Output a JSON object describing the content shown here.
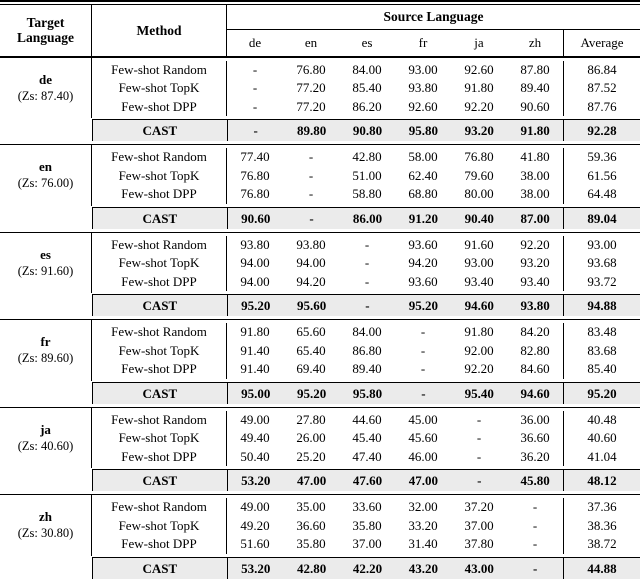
{
  "table": {
    "header": {
      "target_language_label": "Target Language",
      "method_label": "Method",
      "source_language_label": "Source Language",
      "source_columns": [
        "de",
        "en",
        "es",
        "fr",
        "ja",
        "zh"
      ],
      "average_label": "Average"
    },
    "colors": {
      "cast_row_background": "#ebebeb",
      "rule_color": "#000000"
    },
    "sections": [
      {
        "target": "de",
        "zero_shot": "(Zs: 87.40)",
        "rows": [
          {
            "method": "Few-shot Random",
            "values": [
              "-",
              "76.80",
              "84.00",
              "93.00",
              "92.60",
              "87.80"
            ],
            "average": "86.84"
          },
          {
            "method": "Few-shot TopK",
            "values": [
              "-",
              "77.20",
              "85.40",
              "93.80",
              "91.80",
              "89.40"
            ],
            "average": "87.52"
          },
          {
            "method": "Few-shot DPP",
            "values": [
              "-",
              "77.20",
              "86.20",
              "92.60",
              "92.20",
              "90.60"
            ],
            "average": "87.76"
          }
        ],
        "cast_row": {
          "method": "CAST",
          "values": [
            "-",
            "89.80",
            "90.80",
            "95.80",
            "93.20",
            "91.80"
          ],
          "average": "92.28"
        }
      },
      {
        "target": "en",
        "zero_shot": "(Zs: 76.00)",
        "rows": [
          {
            "method": "Few-shot Random",
            "values": [
              "77.40",
              "-",
              "42.80",
              "58.00",
              "76.80",
              "41.80"
            ],
            "average": "59.36"
          },
          {
            "method": "Few-shot TopK",
            "values": [
              "76.80",
              "-",
              "51.00",
              "62.40",
              "79.60",
              "38.00"
            ],
            "average": "61.56"
          },
          {
            "method": "Few-shot DPP",
            "values": [
              "76.80",
              "-",
              "58.80",
              "68.80",
              "80.00",
              "38.00"
            ],
            "average": "64.48"
          }
        ],
        "cast_row": {
          "method": "CAST",
          "values": [
            "90.60",
            "-",
            "86.00",
            "91.20",
            "90.40",
            "87.00"
          ],
          "average": "89.04"
        }
      },
      {
        "target": "es",
        "zero_shot": "(Zs: 91.60)",
        "rows": [
          {
            "method": "Few-shot Random",
            "values": [
              "93.80",
              "93.80",
              "-",
              "93.60",
              "91.60",
              "92.20"
            ],
            "average": "93.00"
          },
          {
            "method": "Few-shot TopK",
            "values": [
              "94.00",
              "94.00",
              "-",
              "94.20",
              "93.00",
              "93.20"
            ],
            "average": "93.68"
          },
          {
            "method": "Few-shot DPP",
            "values": [
              "94.00",
              "94.20",
              "-",
              "93.60",
              "93.40",
              "93.40"
            ],
            "average": "93.72"
          }
        ],
        "cast_row": {
          "method": "CAST",
          "values": [
            "95.20",
            "95.60",
            "-",
            "95.20",
            "94.60",
            "93.80"
          ],
          "average": "94.88"
        }
      },
      {
        "target": "fr",
        "zero_shot": "(Zs: 89.60)",
        "rows": [
          {
            "method": "Few-shot Random",
            "values": [
              "91.80",
              "65.60",
              "84.00",
              "-",
              "91.80",
              "84.20"
            ],
            "average": "83.48"
          },
          {
            "method": "Few-shot TopK",
            "values": [
              "91.40",
              "65.40",
              "86.80",
              "-",
              "92.00",
              "82.80"
            ],
            "average": "83.68"
          },
          {
            "method": "Few-shot DPP",
            "values": [
              "91.40",
              "69.40",
              "89.40",
              "-",
              "92.20",
              "84.60"
            ],
            "average": "85.40"
          }
        ],
        "cast_row": {
          "method": "CAST",
          "values": [
            "95.00",
            "95.20",
            "95.80",
            "-",
            "95.40",
            "94.60"
          ],
          "average": "95.20"
        }
      },
      {
        "target": "ja",
        "zero_shot": "(Zs: 40.60)",
        "rows": [
          {
            "method": "Few-shot Random",
            "values": [
              "49.00",
              "27.80",
              "44.60",
              "45.00",
              "-",
              "36.00"
            ],
            "average": "40.48"
          },
          {
            "method": "Few-shot TopK",
            "values": [
              "49.40",
              "26.00",
              "45.40",
              "45.60",
              "-",
              "36.60"
            ],
            "average": "40.60"
          },
          {
            "method": "Few-shot DPP",
            "values": [
              "50.40",
              "25.20",
              "47.40",
              "46.00",
              "-",
              "36.20"
            ],
            "average": "41.04"
          }
        ],
        "cast_row": {
          "method": "CAST",
          "values": [
            "53.20",
            "47.00",
            "47.60",
            "47.00",
            "-",
            "45.80"
          ],
          "average": "48.12"
        }
      },
      {
        "target": "zh",
        "zero_shot": "(Zs: 30.80)",
        "rows": [
          {
            "method": "Few-shot Random",
            "values": [
              "49.00",
              "35.00",
              "33.60",
              "32.00",
              "37.20",
              "-"
            ],
            "average": "37.36"
          },
          {
            "method": "Few-shot TopK",
            "values": [
              "49.20",
              "36.60",
              "35.80",
              "33.20",
              "37.00",
              "-"
            ],
            "average": "38.36"
          },
          {
            "method": "Few-shot DPP",
            "values": [
              "51.60",
              "35.80",
              "37.00",
              "31.40",
              "37.80",
              "-"
            ],
            "average": "38.72"
          }
        ],
        "cast_row": {
          "method": "CAST",
          "values": [
            "53.20",
            "42.80",
            "42.20",
            "43.20",
            "43.00",
            "-"
          ],
          "average": "44.88"
        }
      }
    ]
  }
}
